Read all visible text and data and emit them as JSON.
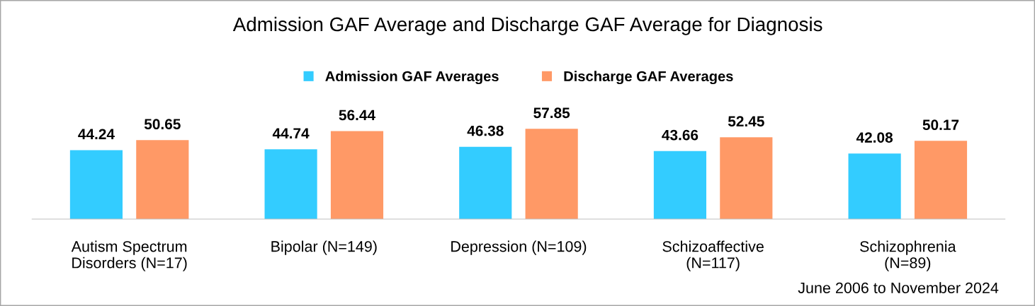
{
  "chart_data": {
    "type": "bar",
    "title": "Admission GAF Average and Discharge GAF Average for Diagnosis",
    "categories": [
      "Autism Spectrum\nDisorders (N=17)",
      "Bipolar (N=149)",
      "Depression (N=109)",
      "Schizoaffective\n(N=117)",
      "Schizophrenia\n(N=89)"
    ],
    "series": [
      {
        "name": "Admission GAF Averages",
        "color": "#33ccff",
        "values": [
          44.24,
          44.74,
          46.38,
          43.66,
          42.08
        ]
      },
      {
        "name": "Discharge GAF Averages",
        "color": "#ff9966",
        "values": [
          50.65,
          56.44,
          57.85,
          52.45,
          50.17
        ]
      }
    ],
    "data_labels": true,
    "legend": "top",
    "grid": false,
    "annotations": [
      "June 2006 to November 2024"
    ]
  }
}
